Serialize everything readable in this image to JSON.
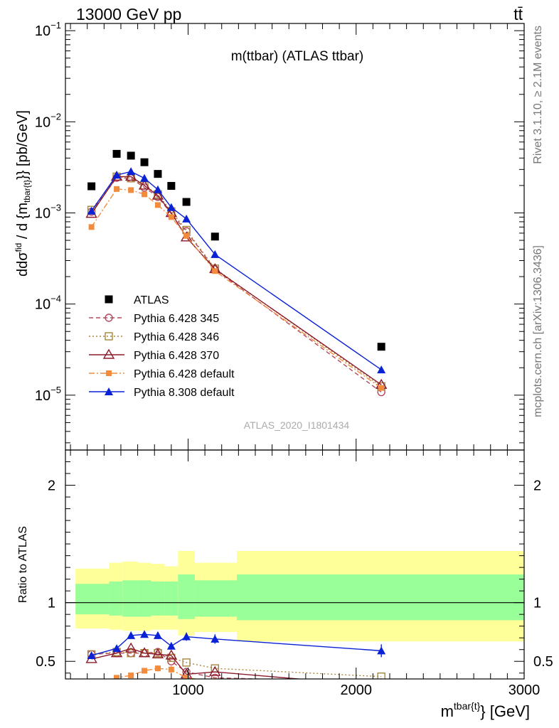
{
  "header": {
    "left": "13000 GeV pp",
    "right": "tt̄"
  },
  "side_text": {
    "rivet": "Rivet 3.1.10, ≥ 2.1M events",
    "mcplots": "mcplots.cern.ch [arXiv:1306.3436]"
  },
  "chart_data": [
    {
      "type": "scatter",
      "title": "m(ttbar) (ATLAS ttbar)",
      "watermark": "ATLAS_2020_I1801434",
      "ylabel": "dσ^{fid}/d{m^{tbar{t}}} [pb/GeV]",
      "ylabel_parts": {
        "pre": "d",
        "sigma": "dσ",
        "fid": "fid",
        "denom": "d {m",
        "sub": "tbar{t}",
        "post": "}} [pb/GeV]"
      },
      "yscale": "log",
      "ylim": [
        2.5e-06,
        0.12
      ],
      "xlim": [
        270,
        3000
      ],
      "yticks": [
        {
          "v": 1e-05,
          "mant": "10",
          "exp": "−5"
        },
        {
          "v": 0.0001,
          "mant": "10",
          "exp": "−4"
        },
        {
          "v": 0.001,
          "mant": "10",
          "exp": "−3"
        },
        {
          "v": 0.01,
          "mant": "10",
          "exp": "−2"
        },
        {
          "v": 0.1,
          "mant": "10",
          "exp": "−1"
        }
      ],
      "legend_position": "bottom-left",
      "x": [
        425,
        575,
        660,
        740,
        820,
        900,
        990,
        1160,
        2150
      ],
      "series": [
        {
          "name": "ATLAS",
          "style": "square",
          "color": "#000000",
          "line": "none",
          "values": [
            0.00196,
            0.00445,
            0.00425,
            0.0036,
            0.00268,
            0.00198,
            0.00132,
            0.00055,
            3.4e-05
          ]
        },
        {
          "name": "Pythia 6.428 345",
          "style": "circle-open",
          "color": "#b5495b",
          "line": "dashed",
          "values": [
            0.00103,
            0.00243,
            0.0024,
            0.0019,
            0.0015,
            0.00098,
            0.00063,
            0.00024,
            1.08e-05
          ]
        },
        {
          "name": "Pythia 6.428 346",
          "style": "square-open",
          "color": "#a8863c",
          "line": "dotted",
          "values": [
            0.00108,
            0.0025,
            0.0024,
            0.002,
            0.0016,
            0.00104,
            0.00065,
            0.000245,
            1.25e-05
          ]
        },
        {
          "name": "Pythia 6.428 370",
          "style": "triangle-open",
          "color": "#8b1a2b",
          "line": "solid",
          "values": [
            0.00098,
            0.0025,
            0.0025,
            0.002,
            0.00155,
            0.001,
            0.00054,
            0.000242,
            1.3e-05
          ]
        },
        {
          "name": "Pythia 6.428 default",
          "style": "square-small",
          "color": "#f28b3c",
          "line": "dashdot",
          "values": [
            0.0007,
            0.00183,
            0.00178,
            0.0016,
            0.00122,
            0.0009,
            0.00056,
            0.00023,
            1.2e-05
          ]
        },
        {
          "name": "Pythia 8.308 default",
          "style": "triangle",
          "color": "#0a22d6",
          "line": "solid",
          "values": [
            0.00105,
            0.0026,
            0.00285,
            0.0024,
            0.0018,
            0.00115,
            0.00086,
            0.00035,
            1.9e-05
          ]
        }
      ]
    },
    {
      "type": "line",
      "ylabel": "Ratio to ATLAS",
      "xlabel_parts": {
        "main": "m",
        "sup": "tbar{t}",
        "post": "} [GeV]"
      },
      "xlim": [
        270,
        3000
      ],
      "ylim": [
        0.35,
        2.3
      ],
      "xticks": [
        1000,
        2000,
        3000
      ],
      "yticks": [
        0.5,
        1,
        2
      ],
      "reference_line": 1,
      "bands": {
        "edges": [
          330,
          530,
          610,
          700,
          780,
          860,
          940,
          1040,
          1290,
          3000
        ],
        "green_lo": [
          0.9,
          0.89,
          0.88,
          0.88,
          0.89,
          0.89,
          0.86,
          0.88,
          0.85
        ],
        "green_hi": [
          1.16,
          1.18,
          1.19,
          1.19,
          1.18,
          1.18,
          1.24,
          1.19,
          1.24
        ],
        "yellow_lo": [
          0.78,
          0.77,
          0.76,
          0.76,
          0.77,
          0.77,
          0.72,
          0.75,
          0.67
        ],
        "yellow_hi": [
          1.29,
          1.34,
          1.35,
          1.34,
          1.33,
          1.31,
          1.44,
          1.34,
          1.44
        ],
        "colors": {
          "green": "#99ff99",
          "yellow": "#ffff99"
        }
      },
      "x": [
        425,
        575,
        660,
        740,
        820,
        900,
        990,
        1160,
        2150
      ],
      "series": [
        {
          "name": "Pythia 6.428 345",
          "style": "circle-open",
          "color": "#b5495b",
          "line": "dashed",
          "values": [
            0.56,
            0.57,
            0.57,
            0.57,
            0.58,
            0.5,
            0.41,
            0.36,
            0.32
          ]
        },
        {
          "name": "Pythia 6.428 346",
          "style": "square-open",
          "color": "#a8863c",
          "line": "dotted",
          "values": [
            0.56,
            0.58,
            0.57,
            0.57,
            0.57,
            0.53,
            0.49,
            0.44,
            0.37
          ]
        },
        {
          "name": "Pythia 6.428 370",
          "style": "triangle-open",
          "color": "#8b1a2b",
          "line": "solid",
          "values": [
            0.52,
            0.57,
            0.61,
            0.57,
            0.56,
            0.55,
            0.39,
            0.41,
            0.29
          ]
        },
        {
          "name": "Pythia 6.428 default",
          "style": "square-small",
          "color": "#f28b3c",
          "line": "dashdot",
          "values": [
            0.31,
            0.36,
            0.38,
            0.42,
            0.44,
            0.43,
            0.36,
            0.33,
            0.3
          ],
          "errors": [
            0.01,
            0.015,
            0.02,
            0.02,
            0.025,
            0.03,
            0.03,
            0.03,
            0.03
          ]
        },
        {
          "name": "Pythia 8.308 default",
          "style": "triangle",
          "color": "#0a22d6",
          "line": "solid",
          "values": [
            0.55,
            0.61,
            0.72,
            0.73,
            0.72,
            0.63,
            0.71,
            0.69,
            0.59
          ],
          "errors": [
            0.02,
            0.025,
            0.025,
            0.025,
            0.03,
            0.03,
            0.035,
            0.04,
            0.055
          ]
        }
      ]
    }
  ]
}
